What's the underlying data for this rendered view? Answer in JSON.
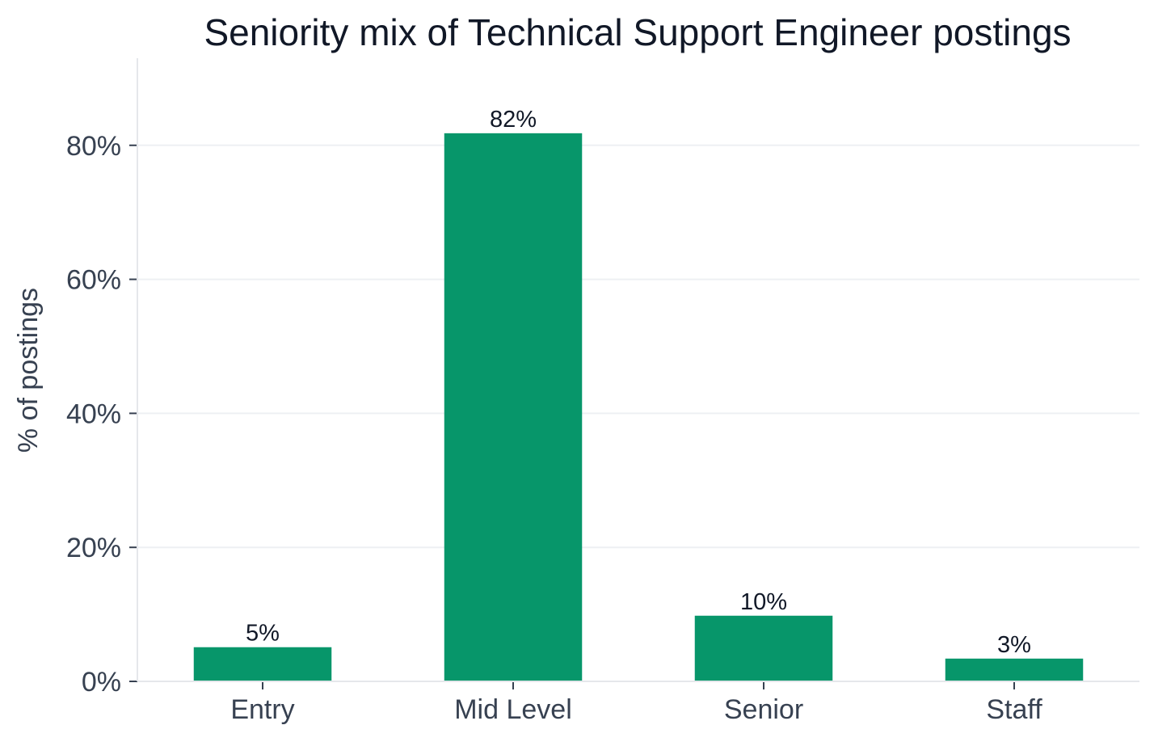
{
  "chart_data": {
    "type": "bar",
    "title": "Seniority mix of Technical Support Engineer postings",
    "xlabel": "",
    "ylabel": "% of postings",
    "categories": [
      "Entry",
      "Mid Level",
      "Senior",
      "Staff"
    ],
    "values": [
      5.1,
      81.8,
      9.8,
      3.4
    ],
    "value_labels": [
      "5%",
      "82%",
      "10%",
      "3%"
    ],
    "ylim": [
      0,
      93
    ],
    "yticks": [
      0,
      20,
      40,
      60,
      80
    ],
    "ytick_labels": [
      "0%",
      "20%",
      "40%",
      "60%",
      "80%"
    ],
    "grid": "horizontal",
    "bar_color": "#07966a"
  }
}
